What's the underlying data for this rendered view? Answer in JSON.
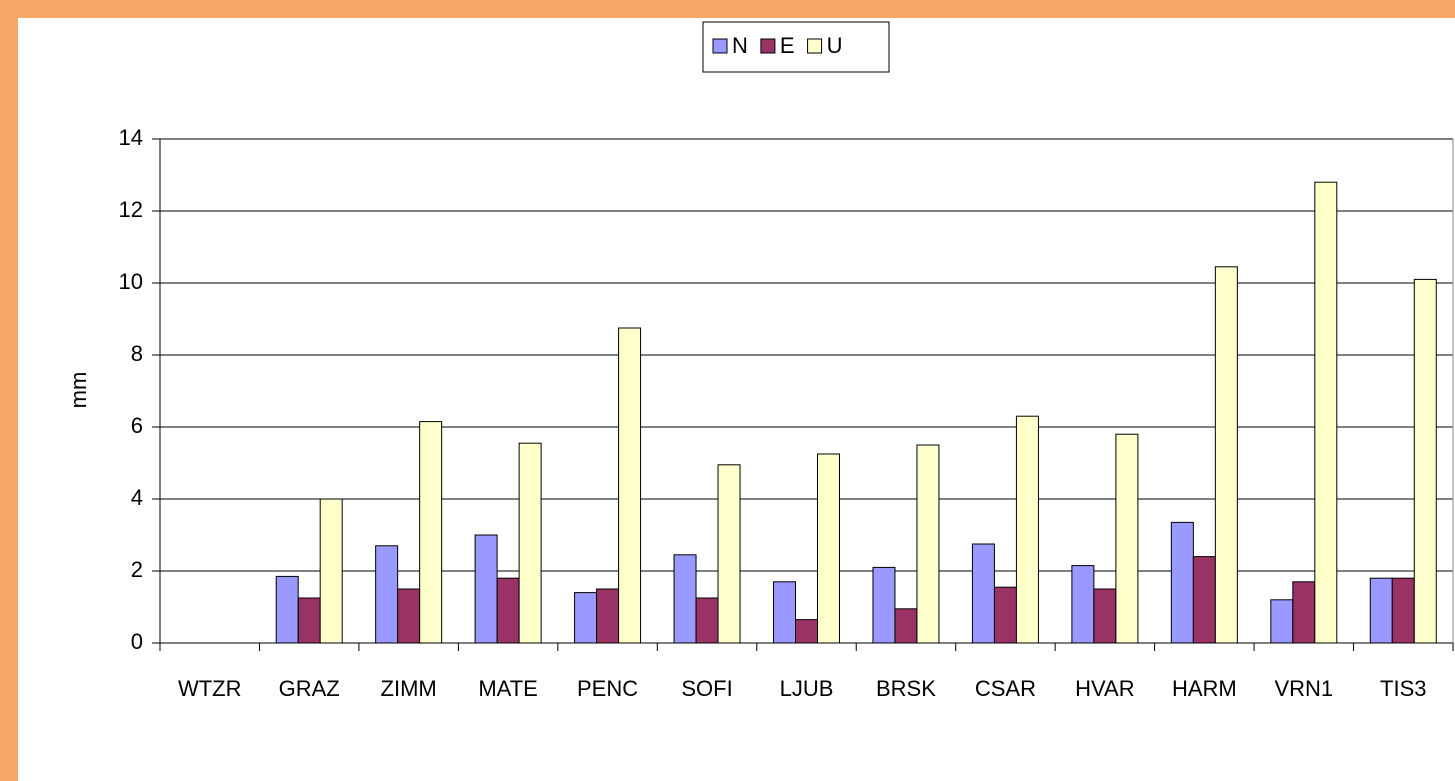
{
  "chart_data": {
    "type": "bar",
    "y_label": "mm",
    "categories": [
      "WTZR",
      "GRAZ",
      "ZIMM",
      "MATE",
      "PENC",
      "SOFI",
      "LJUB",
      "BRSK",
      "CSAR",
      "HVAR",
      "HARM",
      "VRN1",
      "TIS3"
    ],
    "series": [
      {
        "name": "N",
        "color": "#9999ff",
        "values": [
          0,
          1.85,
          2.7,
          3.0,
          1.4,
          2.45,
          1.7,
          2.1,
          2.75,
          2.15,
          3.35,
          1.2,
          1.8
        ]
      },
      {
        "name": "E",
        "color": "#993366",
        "values": [
          0,
          1.25,
          1.5,
          1.8,
          1.5,
          1.25,
          0.65,
          0.95,
          1.55,
          1.5,
          2.4,
          1.7,
          1.8
        ]
      },
      {
        "name": "U",
        "color": "#ffffcc",
        "values": [
          0,
          4.0,
          6.15,
          5.55,
          8.75,
          4.95,
          5.25,
          5.5,
          6.3,
          5.8,
          10.45,
          12.8,
          10.1
        ]
      }
    ],
    "ylim": [
      0,
      14
    ],
    "yticks": [
      0,
      2,
      4,
      6,
      8,
      10,
      12,
      14
    ],
    "grid": true,
    "legend": "top"
  }
}
